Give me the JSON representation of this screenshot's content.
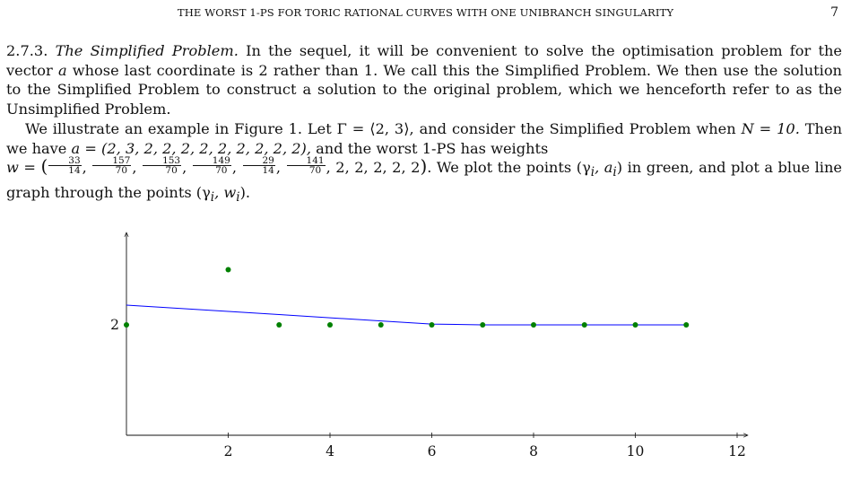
{
  "header": {
    "title": "THE WORST 1-PS FOR TORIC RATIONAL CURVES WITH ONE UNIBRANCH SINGULARITY",
    "page_number": "7"
  },
  "section": {
    "number": "2.7.3.",
    "title": "The Simplified Problem.",
    "p1_text": " In the sequel, it will be convenient to solve the optimisation problem for the vector ",
    "p1_var": "a",
    "p1_rest": " whose last coordinate is 2 rather than 1. We call this the Simplified Problem. We then use the solution to the Simplified Problem to construct a solution to the original problem, which we henceforth refer to as the Unsimplified Problem."
  },
  "example": {
    "s1": "We illustrate an example in Figure 1. Let Γ = ⟨2, 3⟩, and consider the Simplified Problem when ",
    "s1_eq": "N = 10.",
    "s2": " Then we have ",
    "s2_eq": "a = (2, 3, 2, 2, 2, 2, 2, 2, 2, 2, 2),",
    "s2_rest": " and the worst 1-PS has weights",
    "w_lhs": "w = ",
    "w_fracs": [
      [
        "33",
        "14"
      ],
      [
        "157",
        "70"
      ],
      [
        "153",
        "70"
      ],
      [
        "149",
        "70"
      ],
      [
        "29",
        "14"
      ],
      [
        "141",
        "70"
      ]
    ],
    "w_tail": ", 2, 2, 2, 2, 2",
    "s3": ". We plot the points (γ",
    "s3_sub": "i",
    "s3_mid": ", a",
    "s3_sub2": "i",
    "s3_rest": ") in green, and plot a blue line graph through the points (γ",
    "s3_sub3": "i",
    "s3_mid2": ", w",
    "s3_sub4": "i",
    "s3_end": ")."
  },
  "chart_data": {
    "type": "scatter",
    "x": [
      0,
      2,
      3,
      4,
      5,
      6,
      7,
      8,
      9,
      10,
      11
    ],
    "series": [
      {
        "values": [
          2,
          3,
          2,
          2,
          2,
          2,
          2,
          2,
          2,
          2,
          2
        ],
        "color": "#008000",
        "style": "points"
      },
      {
        "values": [
          2.357,
          2.243,
          2.186,
          2.129,
          2.071,
          2.014,
          2,
          2,
          2,
          2,
          2
        ],
        "color": "#0000ff",
        "style": "line"
      }
    ],
    "xticks": [
      "2",
      "4",
      "6",
      "8",
      "10",
      "12"
    ],
    "xtick_values": [
      2,
      4,
      6,
      8,
      10,
      12
    ],
    "yticks": [
      "2"
    ],
    "ytick_values": [
      2
    ],
    "xlim": [
      0,
      12.2
    ],
    "ylim": [
      0,
      4
    ],
    "grid": false
  }
}
